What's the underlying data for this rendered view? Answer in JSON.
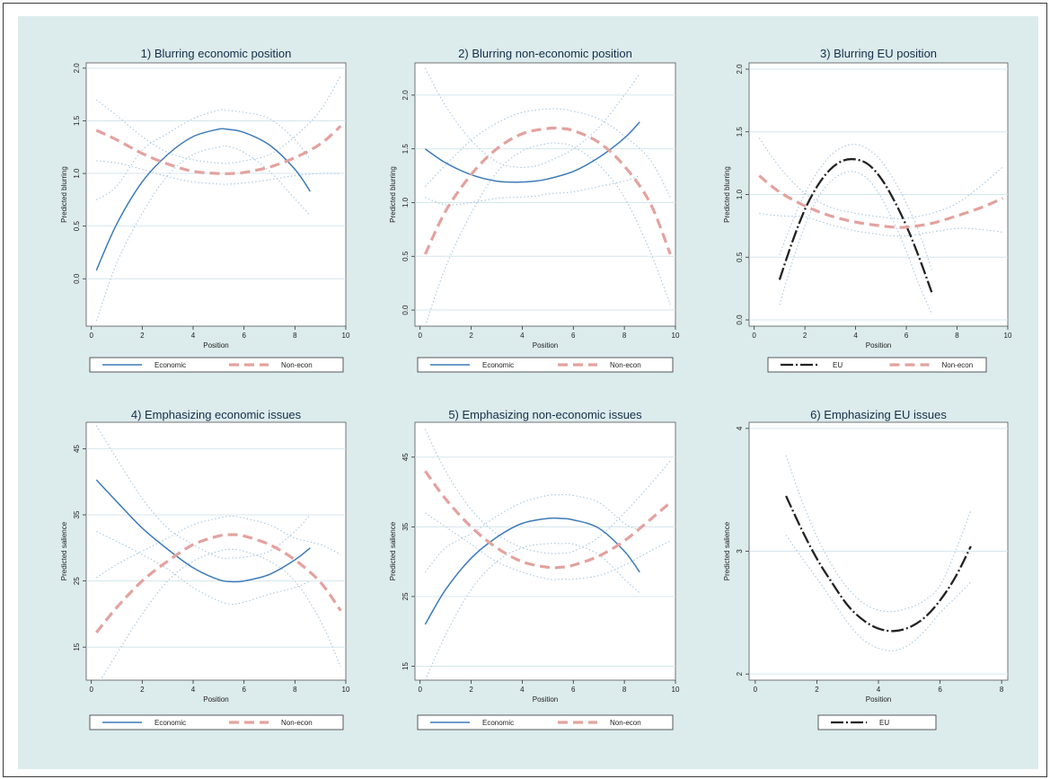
{
  "figure": {
    "background": "#dcebec",
    "colors": {
      "economic": "#3d7ab8",
      "noneconomic": "#e3a29e",
      "eu": "#222222",
      "ci": "#a9c7e0",
      "grid": "#d5e6ec"
    }
  },
  "chart_data": [
    {
      "type": "line",
      "title": "1) Blurring economic position",
      "xlabel": "Position",
      "ylabel": "Predicted blurring",
      "xlim": [
        -0.2,
        10
      ],
      "ylim": [
        -0.45,
        2.05
      ],
      "xticks": [
        0,
        2,
        4,
        6,
        8,
        10
      ],
      "yticks": [
        0.0,
        0.5,
        1.0,
        1.5,
        2.0
      ],
      "ytick_labels": [
        "0.0",
        "0.5",
        "1.0",
        "1.5",
        "2.0"
      ],
      "grid": true,
      "legend_placement": "below",
      "legend": [
        "Economic",
        "Non-econ"
      ],
      "series": [
        {
          "name": "Economic",
          "style": "solid",
          "color": "#3d7ab8",
          "x": [
            0.2,
            1,
            2,
            3,
            4,
            5,
            5.3,
            6,
            7,
            8,
            8.6
          ],
          "y": [
            0.08,
            0.52,
            0.92,
            1.18,
            1.35,
            1.42,
            1.42,
            1.39,
            1.27,
            1.04,
            0.83
          ],
          "ci_low": [
            -0.4,
            0.15,
            0.62,
            0.98,
            1.18,
            1.25,
            1.26,
            1.2,
            1.02,
            0.76,
            0.6
          ],
          "ci_high": [
            0.75,
            0.88,
            1.22,
            1.38,
            1.52,
            1.6,
            1.6,
            1.58,
            1.52,
            1.32,
            1.13
          ]
        },
        {
          "name": "Non-econ",
          "style": "dashed",
          "color": "#e3a29e",
          "x": [
            0.2,
            1,
            2,
            3,
            4,
            5,
            5.5,
            6,
            7,
            8,
            9,
            9.8
          ],
          "y": [
            1.41,
            1.32,
            1.19,
            1.09,
            1.02,
            1.0,
            1.0,
            1.01,
            1.06,
            1.15,
            1.28,
            1.45
          ],
          "ci_low": [
            1.12,
            1.1,
            1.04,
            0.97,
            0.92,
            0.9,
            0.9,
            0.91,
            0.94,
            0.98,
            1.0,
            1.0
          ],
          "ci_high": [
            1.7,
            1.55,
            1.35,
            1.2,
            1.13,
            1.1,
            1.1,
            1.12,
            1.18,
            1.35,
            1.6,
            1.93
          ]
        }
      ]
    },
    {
      "type": "line",
      "title": "2) Blurring non-economic position",
      "xlabel": "Position",
      "ylabel": "Predicted blurring",
      "xlim": [
        -0.2,
        10
      ],
      "ylim": [
        -0.15,
        2.3
      ],
      "xticks": [
        0,
        2,
        4,
        6,
        8,
        10
      ],
      "yticks": [
        0.0,
        0.5,
        1.0,
        1.5,
        2.0
      ],
      "ytick_labels": [
        "0.0",
        "0.5",
        "1.0",
        "1.5",
        "2.0"
      ],
      "grid": true,
      "legend_placement": "below",
      "legend": [
        "Economic",
        "Non-econ"
      ],
      "series": [
        {
          "name": "Economic",
          "style": "solid",
          "color": "#3d7ab8",
          "x": [
            0.2,
            1,
            2,
            3,
            3.8,
            4.5,
            5,
            6,
            7,
            8,
            8.6
          ],
          "y": [
            1.5,
            1.37,
            1.26,
            1.2,
            1.19,
            1.2,
            1.22,
            1.29,
            1.42,
            1.6,
            1.75
          ],
          "ci_low": [
            1.05,
            0.98,
            1.0,
            1.04,
            1.05,
            1.06,
            1.08,
            1.1,
            1.15,
            1.2,
            1.25
          ],
          "ci_high": [
            2.25,
            1.9,
            1.58,
            1.38,
            1.33,
            1.34,
            1.38,
            1.5,
            1.7,
            2.0,
            2.2
          ]
        },
        {
          "name": "Non-econ",
          "style": "dashed",
          "color": "#e3a29e",
          "x": [
            0.2,
            1,
            2,
            3,
            4,
            5,
            5.5,
            6,
            7,
            8,
            9,
            9.8
          ],
          "y": [
            0.52,
            0.92,
            1.26,
            1.5,
            1.64,
            1.69,
            1.69,
            1.67,
            1.56,
            1.34,
            1.0,
            0.52
          ],
          "ci_low": [
            -0.15,
            0.4,
            0.9,
            1.28,
            1.48,
            1.55,
            1.55,
            1.52,
            1.35,
            1.05,
            0.55,
            0.05
          ],
          "ci_high": [
            1.15,
            1.35,
            1.58,
            1.74,
            1.84,
            1.87,
            1.87,
            1.85,
            1.78,
            1.62,
            1.4,
            1.05
          ]
        }
      ]
    },
    {
      "type": "line",
      "title": "3) Blurring EU position",
      "xlabel": "Position",
      "ylabel": "Predicted blurring",
      "xlim": [
        -0.2,
        10
      ],
      "ylim": [
        -0.05,
        2.05
      ],
      "xticks": [
        0,
        2,
        4,
        6,
        8,
        10
      ],
      "yticks": [
        0.0,
        0.5,
        1.0,
        1.5,
        2.0
      ],
      "ytick_labels": [
        "0.0",
        "0.5",
        "1.0",
        "1.5",
        "2.0"
      ],
      "grid": true,
      "legend_placement": "below",
      "legend": [
        "EU",
        "Non-econ"
      ],
      "series": [
        {
          "name": "EU",
          "style": "longdash",
          "color": "#222222",
          "x": [
            1,
            1.5,
            2,
            2.5,
            3,
            3.5,
            4,
            4.5,
            5,
            5.5,
            6,
            6.5,
            7
          ],
          "y": [
            0.32,
            0.62,
            0.88,
            1.07,
            1.2,
            1.27,
            1.28,
            1.24,
            1.13,
            0.96,
            0.75,
            0.5,
            0.22
          ],
          "ci_low": [
            0.12,
            0.46,
            0.75,
            0.97,
            1.1,
            1.17,
            1.18,
            1.12,
            0.98,
            0.78,
            0.55,
            0.28,
            0.05
          ],
          "ci_high": [
            0.52,
            0.78,
            1.01,
            1.18,
            1.31,
            1.38,
            1.4,
            1.36,
            1.27,
            1.12,
            0.93,
            0.7,
            0.4
          ]
        },
        {
          "name": "Non-econ",
          "style": "dashed",
          "color": "#e3a29e",
          "x": [
            0.2,
            1,
            2,
            3,
            4,
            5,
            5.5,
            6,
            7,
            8,
            9,
            9.8
          ],
          "y": [
            1.15,
            1.02,
            0.91,
            0.83,
            0.78,
            0.75,
            0.74,
            0.74,
            0.77,
            0.83,
            0.9,
            0.97
          ],
          "ci_low": [
            0.85,
            0.83,
            0.82,
            0.76,
            0.71,
            0.68,
            0.67,
            0.67,
            0.7,
            0.73,
            0.72,
            0.7
          ],
          "ci_high": [
            1.45,
            1.22,
            1.01,
            0.9,
            0.85,
            0.82,
            0.81,
            0.81,
            0.85,
            0.93,
            1.08,
            1.22
          ]
        }
      ]
    },
    {
      "type": "line",
      "title": "4) Emphasizing economic issues",
      "xlabel": "Position",
      "ylabel": "Predicted salience",
      "xlim": [
        -0.2,
        10
      ],
      "ylim": [
        10,
        49
      ],
      "xticks": [
        0,
        2,
        4,
        6,
        8,
        10
      ],
      "yticks": [
        15,
        25,
        35,
        45
      ],
      "ytick_labels": [
        "15",
        "25",
        "35",
        "45"
      ],
      "grid": true,
      "legend_placement": "below",
      "legend": [
        "Economic",
        "Non-econ"
      ],
      "series": [
        {
          "name": "Economic",
          "style": "solid",
          "color": "#3d7ab8",
          "x": [
            0.2,
            1,
            2,
            3,
            4,
            5,
            5.5,
            6,
            7,
            8,
            8.6
          ],
          "y": [
            40.3,
            37.0,
            33.0,
            29.8,
            27.0,
            25.2,
            24.9,
            25.0,
            26.0,
            28.2,
            30.0
          ],
          "ci_low": [
            32.5,
            31.0,
            29.0,
            26.8,
            24.0,
            22.0,
            21.5,
            21.8,
            23.0,
            24.0,
            25.0
          ],
          "ci_high": [
            48.5,
            43.5,
            37.5,
            33.0,
            30.5,
            28.6,
            28.5,
            28.6,
            29.5,
            32.5,
            35.0
          ]
        },
        {
          "name": "Non-econ",
          "style": "dashed",
          "color": "#e3a29e",
          "x": [
            0.2,
            1,
            2,
            3,
            4,
            5,
            5.5,
            6,
            7,
            8,
            9,
            9.8
          ],
          "y": [
            17.2,
            21.0,
            25.0,
            28.0,
            30.5,
            31.8,
            32.0,
            31.8,
            30.5,
            28.2,
            24.8,
            20.5
          ],
          "ci_low": [
            9.0,
            14.0,
            20.0,
            25.0,
            28.0,
            29.5,
            29.8,
            29.5,
            28.0,
            25.0,
            19.0,
            12.0
          ],
          "ci_high": [
            25.5,
            27.5,
            29.5,
            31.5,
            33.5,
            34.5,
            34.8,
            34.5,
            33.5,
            31.5,
            30.5,
            29.0
          ]
        }
      ]
    },
    {
      "type": "line",
      "title": "5) Emphasizing non-economic issues",
      "xlabel": "Position",
      "ylabel": "Predicted salience",
      "xlim": [
        -0.2,
        10
      ],
      "ylim": [
        13,
        50
      ],
      "xticks": [
        0,
        2,
        4,
        6,
        8,
        10
      ],
      "yticks": [
        15,
        25,
        35,
        45
      ],
      "ytick_labels": [
        "15",
        "25",
        "35",
        "45"
      ],
      "grid": true,
      "legend_placement": "below",
      "legend": [
        "Economic",
        "Non-econ"
      ],
      "series": [
        {
          "name": "Economic",
          "style": "solid",
          "color": "#3d7ab8",
          "x": [
            0.2,
            1,
            2,
            3,
            4,
            5,
            5.5,
            6,
            7,
            8,
            8.6
          ],
          "y": [
            21.0,
            26.0,
            30.5,
            33.5,
            35.5,
            36.2,
            36.2,
            36.0,
            34.8,
            31.5,
            28.5
          ],
          "ci_low": [
            13.0,
            19.5,
            26.0,
            30.0,
            32.0,
            32.6,
            32.6,
            32.5,
            31.0,
            27.5,
            25.5
          ],
          "ci_high": [
            28.5,
            32.0,
            34.0,
            36.5,
            38.5,
            39.5,
            39.6,
            39.5,
            38.5,
            35.5,
            34.5
          ]
        },
        {
          "name": "Non-econ",
          "style": "dashed",
          "color": "#e3a29e",
          "x": [
            0.2,
            1,
            2,
            3,
            4,
            5,
            5.5,
            6,
            7,
            8,
            9,
            9.8
          ],
          "y": [
            43.0,
            39.0,
            35.0,
            32.0,
            30.0,
            29.2,
            29.2,
            29.5,
            30.8,
            33.0,
            36.0,
            38.5
          ],
          "ci_low": [
            37.0,
            35.0,
            32.5,
            30.0,
            28.5,
            27.5,
            27.5,
            27.5,
            28.0,
            29.5,
            31.5,
            33.0
          ],
          "ci_high": [
            49.0,
            43.0,
            37.5,
            34.0,
            32.0,
            31.2,
            31.2,
            31.5,
            33.5,
            37.0,
            41.0,
            44.5
          ]
        }
      ]
    },
    {
      "type": "line",
      "title": "6) Emphasizing EU issues",
      "xlabel": "Position",
      "ylabel": "Predicted salience",
      "xlim": [
        -0.2,
        8.2
      ],
      "ylim": [
        1.95,
        4.05
      ],
      "xticks": [
        0,
        2,
        4,
        6,
        8
      ],
      "yticks": [
        2,
        3,
        4
      ],
      "ytick_labels": [
        "2",
        "3",
        "4"
      ],
      "grid": true,
      "legend_placement": "below",
      "legend": [
        "EU"
      ],
      "series": [
        {
          "name": "EU",
          "style": "longdash",
          "color": "#222222",
          "x": [
            1,
            1.5,
            2,
            2.5,
            3,
            3.5,
            4,
            4.5,
            5,
            5.5,
            6,
            6.5,
            7
          ],
          "y": [
            3.45,
            3.18,
            2.94,
            2.74,
            2.56,
            2.44,
            2.37,
            2.35,
            2.38,
            2.46,
            2.6,
            2.79,
            3.04
          ],
          "ci_low": [
            3.13,
            2.95,
            2.78,
            2.6,
            2.42,
            2.28,
            2.21,
            2.19,
            2.24,
            2.35,
            2.5,
            2.62,
            2.75
          ],
          "ci_high": [
            3.78,
            3.42,
            3.12,
            2.88,
            2.7,
            2.58,
            2.52,
            2.51,
            2.54,
            2.6,
            2.72,
            3.0,
            3.33
          ]
        }
      ]
    }
  ]
}
